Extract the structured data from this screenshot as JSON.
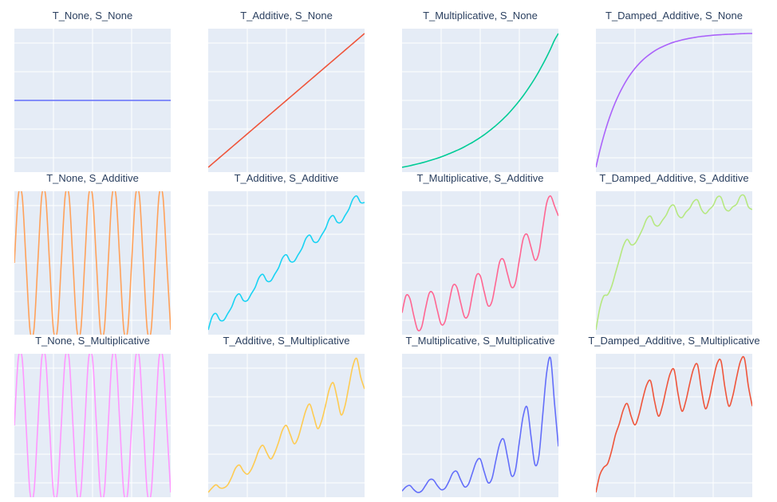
{
  "colors": {
    "plot_background": "#e5ecf6",
    "grid": "#ffffff",
    "title_text": "#2a3f5f"
  },
  "chart_data": [
    {
      "type": "line",
      "title": "T_None, S_None",
      "trend": "none",
      "season": "none",
      "color": "#636efa",
      "x": [
        0,
        1,
        2,
        3,
        4,
        5,
        6,
        7,
        8,
        9,
        10,
        11,
        12,
        13,
        14,
        15,
        16,
        17,
        18,
        19,
        20,
        21,
        22,
        23,
        24,
        25,
        26,
        27,
        28,
        29,
        30,
        31,
        32,
        33,
        34,
        35,
        36,
        37,
        38,
        39,
        40
      ],
      "y": [
        0.5,
        0.5,
        0.5,
        0.5,
        0.5,
        0.5,
        0.5,
        0.5,
        0.5,
        0.5,
        0.5,
        0.5,
        0.5,
        0.5,
        0.5,
        0.5,
        0.5,
        0.5,
        0.5,
        0.5,
        0.5,
        0.5,
        0.5,
        0.5,
        0.5,
        0.5,
        0.5,
        0.5,
        0.5,
        0.5,
        0.5,
        0.5,
        0.5,
        0.5,
        0.5,
        0.5,
        0.5,
        0.5,
        0.5,
        0.5,
        0.5
      ]
    },
    {
      "type": "line",
      "title": "T_Additive, S_None",
      "trend": "additive",
      "season": "none",
      "color": "#ef553b",
      "x": [
        0,
        1,
        2,
        3,
        4,
        5,
        6,
        7,
        8,
        9,
        10,
        11,
        12,
        13,
        14,
        15,
        16,
        17,
        18,
        19,
        20,
        21,
        22,
        23,
        24,
        25,
        26,
        27,
        28,
        29,
        30,
        31,
        32,
        33,
        34,
        35,
        36,
        37,
        38,
        39,
        40
      ],
      "y": [
        0,
        0.025,
        0.05,
        0.075,
        0.1,
        0.125,
        0.15,
        0.175,
        0.2,
        0.225,
        0.25,
        0.275,
        0.3,
        0.325,
        0.35,
        0.375,
        0.4,
        0.425,
        0.45,
        0.475,
        0.5,
        0.525,
        0.55,
        0.575,
        0.6,
        0.625,
        0.65,
        0.675,
        0.7,
        0.725,
        0.75,
        0.775,
        0.8,
        0.825,
        0.85,
        0.875,
        0.9,
        0.925,
        0.95,
        0.975,
        1
      ]
    },
    {
      "type": "line",
      "title": "T_Multiplicative, S_None",
      "trend": "multiplicative",
      "season": "none",
      "color": "#00cc96",
      "x": [
        0,
        1,
        2,
        3,
        4,
        5,
        6,
        7,
        8,
        9,
        10,
        11,
        12,
        13,
        14,
        15,
        16,
        17,
        18,
        19,
        20,
        21,
        22,
        23,
        24,
        25,
        26,
        27,
        28,
        29,
        30,
        31,
        32,
        33,
        34,
        35,
        36,
        37,
        38,
        39,
        40
      ],
      "y": [
        0,
        0.006,
        0.012,
        0.019,
        0.026,
        0.033,
        0.041,
        0.05,
        0.059,
        0.068,
        0.078,
        0.089,
        0.101,
        0.113,
        0.126,
        0.139,
        0.154,
        0.17,
        0.186,
        0.204,
        0.223,
        0.243,
        0.265,
        0.288,
        0.312,
        0.338,
        0.366,
        0.395,
        0.427,
        0.461,
        0.497,
        0.535,
        0.576,
        0.62,
        0.666,
        0.716,
        0.769,
        0.825,
        0.885,
        0.95,
        1
      ]
    },
    {
      "type": "line",
      "title": "T_Damped_Additive, S_None",
      "trend": "damped_additive",
      "season": "none",
      "color": "#ab63fa",
      "x": [
        0,
        1,
        2,
        3,
        4,
        5,
        6,
        7,
        8,
        9,
        10,
        11,
        12,
        13,
        14,
        15,
        16,
        17,
        18,
        19,
        20,
        21,
        22,
        23,
        24,
        25,
        26,
        27,
        28,
        29,
        30,
        31,
        32,
        33,
        34,
        35,
        36,
        37,
        38,
        39,
        40
      ],
      "y": [
        0,
        0.124,
        0.233,
        0.329,
        0.412,
        0.485,
        0.549,
        0.605,
        0.655,
        0.698,
        0.736,
        0.769,
        0.798,
        0.823,
        0.845,
        0.865,
        0.882,
        0.896,
        0.909,
        0.921,
        0.931,
        0.939,
        0.947,
        0.953,
        0.959,
        0.964,
        0.969,
        0.973,
        0.976,
        0.979,
        0.982,
        0.984,
        0.986,
        0.988,
        0.989,
        0.99,
        0.992,
        0.993,
        0.994,
        0.995,
        0.995
      ]
    },
    {
      "type": "line",
      "title": "T_None, S_Additive",
      "trend": "none",
      "season": "additive",
      "color": "#ffa15a",
      "x": [
        0,
        1,
        2,
        3,
        4,
        5,
        6,
        7,
        8,
        9,
        10,
        11,
        12,
        13,
        14,
        15,
        16,
        17,
        18,
        19,
        20,
        21,
        22,
        23,
        24,
        25,
        26,
        27,
        28,
        29,
        30,
        31,
        32,
        33,
        34,
        35,
        36,
        37,
        38,
        39,
        40
      ],
      "y": [
        0.5,
        0.95,
        0.95,
        0.5,
        0.05,
        0.05,
        0.5,
        0.95,
        0.95,
        0.5,
        0.05,
        0.05,
        0.5,
        0.95,
        0.95,
        0.5,
        0.05,
        0.05,
        0.5,
        0.95,
        0.95,
        0.5,
        0.05,
        0.05,
        0.5,
        0.95,
        0.95,
        0.5,
        0.05,
        0.05,
        0.5,
        0.95,
        0.95,
        0.5,
        0.05,
        0.05,
        0.5,
        0.95,
        0.95,
        0.5,
        0.05
      ]
    },
    {
      "type": "line",
      "title": "T_Additive, S_Additive",
      "trend": "additive",
      "season": "additive",
      "color": "#19d3f3",
      "x": [
        0,
        1,
        2,
        3,
        4,
        5,
        6,
        7,
        8,
        9,
        10,
        11,
        12,
        13,
        14,
        15,
        16,
        17,
        18,
        19,
        20,
        21,
        22,
        23,
        24,
        25,
        26,
        27,
        28,
        29,
        30,
        31,
        32,
        33,
        34,
        35,
        36,
        37,
        38,
        39,
        40
      ],
      "y": [
        0,
        0.08,
        0.1,
        0.06,
        0.06,
        0.1,
        0.14,
        0.2,
        0.22,
        0.18,
        0.18,
        0.22,
        0.26,
        0.32,
        0.34,
        0.3,
        0.3,
        0.34,
        0.38,
        0.44,
        0.46,
        0.42,
        0.42,
        0.46,
        0.5,
        0.56,
        0.58,
        0.54,
        0.54,
        0.58,
        0.62,
        0.68,
        0.7,
        0.66,
        0.66,
        0.7,
        0.74,
        0.8,
        0.82,
        0.78,
        0.78
      ]
    },
    {
      "type": "line",
      "title": "T_Multiplicative, S_Additive",
      "trend": "multiplicative",
      "season": "additive",
      "color": "#ff6692",
      "x": [
        0,
        1,
        2,
        3,
        4,
        5,
        6,
        7,
        8,
        9,
        10,
        11,
        12,
        13,
        14,
        15,
        16,
        17,
        18,
        19,
        20,
        21,
        22,
        23,
        24,
        25,
        26,
        27,
        28,
        29,
        30,
        31,
        32,
        33,
        34,
        35,
        36,
        37,
        38,
        39,
        40
      ],
      "y": [
        0.15,
        0.27,
        0.25,
        0.13,
        0.03,
        0.05,
        0.18,
        0.29,
        0.28,
        0.17,
        0.07,
        0.09,
        0.22,
        0.34,
        0.33,
        0.22,
        0.12,
        0.14,
        0.28,
        0.41,
        0.41,
        0.3,
        0.2,
        0.23,
        0.37,
        0.51,
        0.52,
        0.42,
        0.33,
        0.36,
        0.52,
        0.67,
        0.7,
        0.61,
        0.52,
        0.57,
        0.75,
        0.92,
        0.97,
        0.9,
        0.83
      ]
    },
    {
      "type": "line",
      "title": "T_Damped_Additive, S_Additive",
      "trend": "damped_additive",
      "season": "additive",
      "color": "#b6e880",
      "x": [
        0,
        1,
        2,
        3,
        4,
        5,
        6,
        7,
        8,
        9,
        10,
        11,
        12,
        13,
        14,
        15,
        16,
        17,
        18,
        19,
        20,
        21,
        22,
        23,
        24,
        25,
        26,
        27,
        28,
        29,
        30,
        31,
        32,
        33,
        34,
        35,
        36,
        37,
        38,
        39,
        40
      ],
      "y": [
        0.05,
        0.21,
        0.3,
        0.31,
        0.37,
        0.47,
        0.57,
        0.67,
        0.72,
        0.68,
        0.69,
        0.74,
        0.8,
        0.87,
        0.89,
        0.83,
        0.82,
        0.86,
        0.9,
        0.96,
        0.97,
        0.9,
        0.88,
        0.92,
        0.95,
        1,
        1.01,
        0.94,
        0.91,
        0.94,
        0.97,
        1.03,
        1.03,
        0.95,
        0.93,
        0.96,
        0.98,
        1.04,
        1.04,
        0.96,
        0.94
      ]
    },
    {
      "type": "line",
      "title": "T_None, S_Multiplicative",
      "trend": "none",
      "season": "multiplicative",
      "color": "#ff97ff",
      "x": [
        0,
        1,
        2,
        3,
        4,
        5,
        6,
        7,
        8,
        9,
        10,
        11,
        12,
        13,
        14,
        15,
        16,
        17,
        18,
        19,
        20,
        21,
        22,
        23,
        24,
        25,
        26,
        27,
        28,
        29,
        30,
        31,
        32,
        33,
        34,
        35,
        36,
        37,
        38,
        39,
        40
      ],
      "y": [
        0.5,
        0.95,
        0.95,
        0.5,
        0.05,
        0.05,
        0.5,
        0.95,
        0.95,
        0.5,
        0.05,
        0.05,
        0.5,
        0.95,
        0.95,
        0.5,
        0.05,
        0.05,
        0.5,
        0.95,
        0.95,
        0.5,
        0.05,
        0.05,
        0.5,
        0.95,
        0.95,
        0.5,
        0.05,
        0.05,
        0.5,
        0.95,
        0.95,
        0.5,
        0.05,
        0.05,
        0.5,
        0.95,
        0.95,
        0.5,
        0.05
      ]
    },
    {
      "type": "line",
      "title": "T_Additive, S_Multiplicative",
      "trend": "additive",
      "season": "multiplicative",
      "color": "#fecb52",
      "x": [
        0,
        1,
        2,
        3,
        4,
        5,
        6,
        7,
        8,
        9,
        10,
        11,
        12,
        13,
        14,
        15,
        16,
        17,
        18,
        19,
        20,
        21,
        22,
        23,
        24,
        25,
        26,
        27,
        28,
        29,
        30,
        31,
        32,
        33,
        34,
        35,
        36,
        37,
        38,
        39,
        40
      ],
      "y": [
        0.02,
        0.05,
        0.07,
        0.05,
        0.05,
        0.07,
        0.12,
        0.18,
        0.2,
        0.16,
        0.14,
        0.17,
        0.23,
        0.3,
        0.33,
        0.28,
        0.24,
        0.28,
        0.35,
        0.43,
        0.46,
        0.4,
        0.34,
        0.38,
        0.47,
        0.56,
        0.6,
        0.52,
        0.44,
        0.49,
        0.59,
        0.7,
        0.74,
        0.64,
        0.53,
        0.59,
        0.72,
        0.85,
        0.9,
        0.78,
        0.7
      ]
    },
    {
      "type": "line",
      "title": "T_Multiplicative, S_Multiplicative",
      "trend": "multiplicative",
      "season": "multiplicative",
      "color": "#636efa",
      "x": [
        0,
        1,
        2,
        3,
        4,
        5,
        6,
        7,
        8,
        9,
        10,
        11,
        12,
        13,
        14,
        15,
        16,
        17,
        18,
        19,
        20,
        21,
        22,
        23,
        24,
        25,
        26,
        27,
        28,
        29,
        30,
        31,
        32,
        33,
        34,
        35,
        36,
        37,
        38,
        39,
        40
      ],
      "y": [
        0.03,
        0.06,
        0.07,
        0.04,
        0.02,
        0.03,
        0.07,
        0.11,
        0.11,
        0.07,
        0.04,
        0.05,
        0.1,
        0.16,
        0.17,
        0.11,
        0.06,
        0.08,
        0.16,
        0.24,
        0.26,
        0.17,
        0.09,
        0.12,
        0.25,
        0.37,
        0.4,
        0.27,
        0.14,
        0.18,
        0.38,
        0.57,
        0.63,
        0.42,
        0.22,
        0.28,
        0.58,
        0.88,
        0.98,
        0.66,
        0.35
      ]
    },
    {
      "type": "line",
      "title": "T_Damped_Additive, S_Multiplicative",
      "trend": "damped_additive",
      "season": "multiplicative",
      "color": "#ef553b",
      "x": [
        0,
        1,
        2,
        3,
        4,
        5,
        6,
        7,
        8,
        9,
        10,
        11,
        12,
        13,
        14,
        15,
        16,
        17,
        18,
        19,
        20,
        21,
        22,
        23,
        24,
        25,
        26,
        27,
        28,
        29,
        30,
        31,
        32,
        33,
        34,
        35,
        36,
        37,
        38,
        39,
        40
      ],
      "y": [
        0.02,
        0.16,
        0.22,
        0.25,
        0.35,
        0.48,
        0.57,
        0.68,
        0.73,
        0.63,
        0.56,
        0.64,
        0.77,
        0.88,
        0.91,
        0.75,
        0.63,
        0.71,
        0.85,
        0.97,
        1.0,
        0.81,
        0.67,
        0.75,
        0.89,
        1.01,
        1.04,
        0.84,
        0.69,
        0.77,
        0.92,
        1.05,
        1.07,
        0.86,
        0.71,
        0.79,
        0.94,
        1.07,
        1.09,
        0.87,
        0.71
      ]
    }
  ]
}
